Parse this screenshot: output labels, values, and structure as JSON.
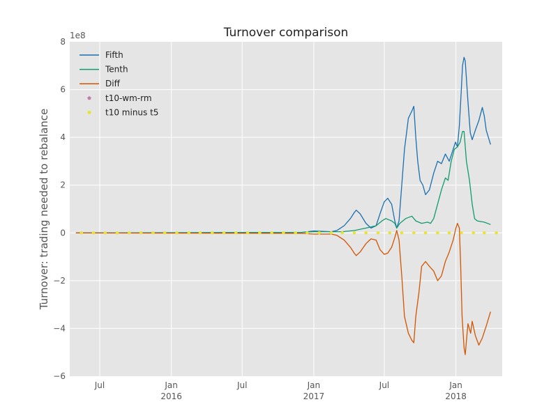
{
  "chart_data": {
    "type": "line",
    "title": "Turnover comparison",
    "ylabel": "Turnover: trading needed to rebalance",
    "xlabel": "",
    "y_offset_label": "1e8",
    "ylim": [
      -6,
      8
    ],
    "yticks": [
      -6,
      -4,
      -2,
      0,
      2,
      4,
      6,
      8
    ],
    "ytick_labels": [
      "−6",
      "−4",
      "−2",
      "0",
      "2",
      "4",
      "6",
      "8"
    ],
    "xlim": [
      "2015-04-15",
      "2018-04-30"
    ],
    "xticks": [
      {
        "date": "2015-07-01",
        "label": "Jul",
        "sub": ""
      },
      {
        "date": "2016-01-01",
        "label": "Jan",
        "sub": "2016"
      },
      {
        "date": "2016-07-01",
        "label": "Jul",
        "sub": ""
      },
      {
        "date": "2017-01-01",
        "label": "Jan",
        "sub": "2017"
      },
      {
        "date": "2017-07-01",
        "label": "Jul",
        "sub": ""
      },
      {
        "date": "2018-01-01",
        "label": "Jan",
        "sub": "2018"
      }
    ],
    "grid": true,
    "legend_position": "upper-left",
    "series": [
      {
        "name": "Fifth",
        "kind": "line",
        "color": "#1a6fb0",
        "points": [
          [
            "2015-05-01",
            0.0
          ],
          [
            "2016-12-01",
            0.02
          ],
          [
            "2017-01-01",
            0.08
          ],
          [
            "2017-02-15",
            0.05
          ],
          [
            "2017-03-01",
            0.1
          ],
          [
            "2017-03-20",
            0.3
          ],
          [
            "2017-04-05",
            0.6
          ],
          [
            "2017-04-15",
            0.85
          ],
          [
            "2017-04-20",
            0.95
          ],
          [
            "2017-04-30",
            0.8
          ],
          [
            "2017-05-15",
            0.4
          ],
          [
            "2017-05-28",
            0.2
          ],
          [
            "2017-06-10",
            0.3
          ],
          [
            "2017-06-20",
            0.8
          ],
          [
            "2017-07-01",
            1.3
          ],
          [
            "2017-07-10",
            1.45
          ],
          [
            "2017-07-20",
            1.2
          ],
          [
            "2017-07-28",
            0.5
          ],
          [
            "2017-08-02",
            0.2
          ],
          [
            "2017-08-08",
            0.5
          ],
          [
            "2017-08-15",
            2.0
          ],
          [
            "2017-08-22",
            3.5
          ],
          [
            "2017-09-01",
            4.8
          ],
          [
            "2017-09-10",
            5.1
          ],
          [
            "2017-09-15",
            5.3
          ],
          [
            "2017-09-20",
            4.0
          ],
          [
            "2017-09-25",
            3.0
          ],
          [
            "2017-10-01",
            2.2
          ],
          [
            "2017-10-08",
            2.0
          ],
          [
            "2017-10-15",
            1.6
          ],
          [
            "2017-10-25",
            1.8
          ],
          [
            "2017-11-05",
            2.5
          ],
          [
            "2017-11-15",
            3.0
          ],
          [
            "2017-11-25",
            2.9
          ],
          [
            "2017-12-05",
            3.3
          ],
          [
            "2017-12-15",
            3.0
          ],
          [
            "2017-12-25",
            3.5
          ],
          [
            "2017-12-31",
            3.8
          ],
          [
            "2018-01-05",
            3.6
          ],
          [
            "2018-01-10",
            4.5
          ],
          [
            "2018-01-15",
            6.0
          ],
          [
            "2018-01-18",
            7.0
          ],
          [
            "2018-01-22",
            7.35
          ],
          [
            "2018-01-25",
            7.2
          ],
          [
            "2018-02-01",
            5.5
          ],
          [
            "2018-02-07",
            4.2
          ],
          [
            "2018-02-12",
            3.9
          ],
          [
            "2018-02-20",
            4.3
          ],
          [
            "2018-03-01",
            4.7
          ],
          [
            "2018-03-10",
            5.25
          ],
          [
            "2018-03-15",
            4.9
          ],
          [
            "2018-03-20",
            4.3
          ],
          [
            "2018-03-31",
            3.7
          ]
        ]
      },
      {
        "name": "Tenth",
        "kind": "line",
        "color": "#0f9b6e",
        "points": [
          [
            "2015-05-01",
            0.0
          ],
          [
            "2016-12-01",
            0.02
          ],
          [
            "2017-01-01",
            0.05
          ],
          [
            "2017-03-15",
            0.05
          ],
          [
            "2017-04-15",
            0.1
          ],
          [
            "2017-05-15",
            0.2
          ],
          [
            "2017-06-10",
            0.3
          ],
          [
            "2017-06-25",
            0.5
          ],
          [
            "2017-07-05",
            0.6
          ],
          [
            "2017-07-20",
            0.5
          ],
          [
            "2017-07-28",
            0.4
          ],
          [
            "2017-08-02",
            0.2
          ],
          [
            "2017-08-10",
            0.4
          ],
          [
            "2017-08-25",
            0.6
          ],
          [
            "2017-09-10",
            0.7
          ],
          [
            "2017-09-20",
            0.5
          ],
          [
            "2017-10-05",
            0.4
          ],
          [
            "2017-10-20",
            0.45
          ],
          [
            "2017-10-28",
            0.4
          ],
          [
            "2017-11-05",
            0.6
          ],
          [
            "2017-11-15",
            1.2
          ],
          [
            "2017-11-25",
            1.8
          ],
          [
            "2017-12-05",
            2.3
          ],
          [
            "2017-12-12",
            2.2
          ],
          [
            "2017-12-20",
            3.0
          ],
          [
            "2017-12-28",
            3.5
          ],
          [
            "2018-01-05",
            3.6
          ],
          [
            "2018-01-12",
            3.8
          ],
          [
            "2018-01-18",
            4.25
          ],
          [
            "2018-01-22",
            4.25
          ],
          [
            "2018-01-28",
            3.0
          ],
          [
            "2018-02-05",
            2.2
          ],
          [
            "2018-02-12",
            1.2
          ],
          [
            "2018-02-18",
            0.6
          ],
          [
            "2018-02-25",
            0.5
          ],
          [
            "2018-03-15",
            0.45
          ],
          [
            "2018-03-31",
            0.35
          ]
        ]
      },
      {
        "name": "Diff",
        "kind": "line",
        "color": "#d35400",
        "points": [
          [
            "2015-05-01",
            0.0
          ],
          [
            "2016-12-01",
            -0.02
          ],
          [
            "2017-01-01",
            -0.05
          ],
          [
            "2017-02-15",
            -0.05
          ],
          [
            "2017-03-01",
            -0.1
          ],
          [
            "2017-03-20",
            -0.3
          ],
          [
            "2017-04-05",
            -0.6
          ],
          [
            "2017-04-15",
            -0.85
          ],
          [
            "2017-04-20",
            -0.95
          ],
          [
            "2017-04-30",
            -0.8
          ],
          [
            "2017-05-15",
            -0.45
          ],
          [
            "2017-05-28",
            -0.25
          ],
          [
            "2017-06-10",
            -0.3
          ],
          [
            "2017-06-20",
            -0.7
          ],
          [
            "2017-07-01",
            -0.9
          ],
          [
            "2017-07-10",
            -0.85
          ],
          [
            "2017-07-20",
            -0.6
          ],
          [
            "2017-07-28",
            -0.2
          ],
          [
            "2017-08-02",
            0.1
          ],
          [
            "2017-08-08",
            -0.3
          ],
          [
            "2017-08-15",
            -1.8
          ],
          [
            "2017-08-22",
            -3.5
          ],
          [
            "2017-09-01",
            -4.2
          ],
          [
            "2017-09-10",
            -4.5
          ],
          [
            "2017-09-15",
            -4.6
          ],
          [
            "2017-09-20",
            -3.5
          ],
          [
            "2017-09-28",
            -2.5
          ],
          [
            "2017-10-05",
            -1.4
          ],
          [
            "2017-10-15",
            -1.2
          ],
          [
            "2017-10-25",
            -1.4
          ],
          [
            "2017-11-05",
            -1.6
          ],
          [
            "2017-11-15",
            -2.0
          ],
          [
            "2017-11-25",
            -1.8
          ],
          [
            "2017-12-05",
            -1.2
          ],
          [
            "2017-12-15",
            -0.8
          ],
          [
            "2017-12-25",
            -0.3
          ],
          [
            "2018-01-01",
            0.2
          ],
          [
            "2018-01-05",
            0.4
          ],
          [
            "2018-01-10",
            0.2
          ],
          [
            "2018-01-13",
            -1.2
          ],
          [
            "2018-01-17",
            -3.5
          ],
          [
            "2018-01-22",
            -4.8
          ],
          [
            "2018-01-25",
            -5.1
          ],
          [
            "2018-02-01",
            -3.8
          ],
          [
            "2018-02-08",
            -4.2
          ],
          [
            "2018-02-12",
            -3.7
          ],
          [
            "2018-02-20",
            -4.3
          ],
          [
            "2018-03-01",
            -4.7
          ],
          [
            "2018-03-10",
            -4.4
          ],
          [
            "2018-03-20",
            -3.9
          ],
          [
            "2018-03-31",
            -3.3
          ]
        ]
      },
      {
        "name": "t10-wm-rm",
        "kind": "markers",
        "color": "#c77cb0",
        "points": []
      },
      {
        "name": "t10 minus t5",
        "kind": "markers",
        "color": "#e8e23a",
        "points": [
          [
            "2015-05-15",
            0
          ],
          [
            "2015-06-15",
            0
          ],
          [
            "2015-07-15",
            0
          ],
          [
            "2015-08-15",
            0
          ],
          [
            "2015-09-15",
            0
          ],
          [
            "2015-10-15",
            0
          ],
          [
            "2015-11-15",
            0
          ],
          [
            "2015-12-15",
            0
          ],
          [
            "2016-01-15",
            0
          ],
          [
            "2016-02-15",
            0
          ],
          [
            "2016-03-15",
            0
          ],
          [
            "2016-04-15",
            0
          ],
          [
            "2016-05-15",
            0
          ],
          [
            "2016-06-15",
            0
          ],
          [
            "2016-07-15",
            0
          ],
          [
            "2016-08-15",
            0
          ],
          [
            "2016-09-15",
            0
          ],
          [
            "2016-10-15",
            0
          ],
          [
            "2016-11-15",
            0
          ],
          [
            "2016-12-15",
            0
          ],
          [
            "2017-01-15",
            0
          ],
          [
            "2017-02-15",
            0
          ],
          [
            "2017-03-15",
            0
          ],
          [
            "2017-04-15",
            0
          ],
          [
            "2017-05-15",
            0
          ],
          [
            "2017-06-15",
            0
          ],
          [
            "2017-07-15",
            0
          ],
          [
            "2017-08-15",
            0
          ],
          [
            "2017-09-15",
            0
          ],
          [
            "2017-10-15",
            0
          ],
          [
            "2017-11-15",
            0
          ],
          [
            "2017-12-15",
            0
          ],
          [
            "2018-01-15",
            0
          ],
          [
            "2018-02-15",
            0
          ],
          [
            "2018-03-15",
            0
          ],
          [
            "2018-04-15",
            0
          ]
        ]
      }
    ]
  }
}
